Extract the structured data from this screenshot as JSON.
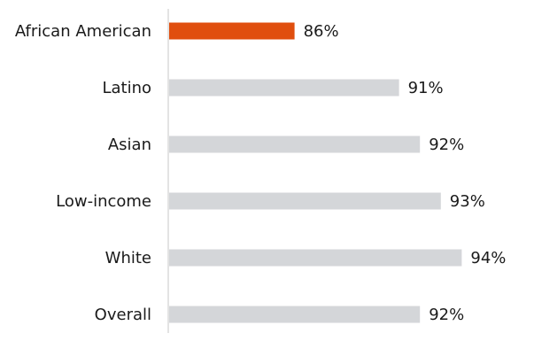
{
  "chart_data": {
    "type": "bar",
    "orientation": "horizontal",
    "categories": [
      "African American",
      "Latino",
      "Asian",
      "Low-income",
      "White",
      "Overall"
    ],
    "values": [
      86,
      91,
      92,
      93,
      94,
      92
    ],
    "value_labels": [
      "86%",
      "91%",
      "92%",
      "93%",
      "94%",
      "92%"
    ],
    "highlight_index": 0,
    "title": "",
    "xlabel": "",
    "ylabel": "",
    "grid": false,
    "colors": {
      "highlight": "#e04e0e",
      "default": "#d4d6d9",
      "axis": "#d0d0d0",
      "text": "#1a1a1a"
    }
  }
}
